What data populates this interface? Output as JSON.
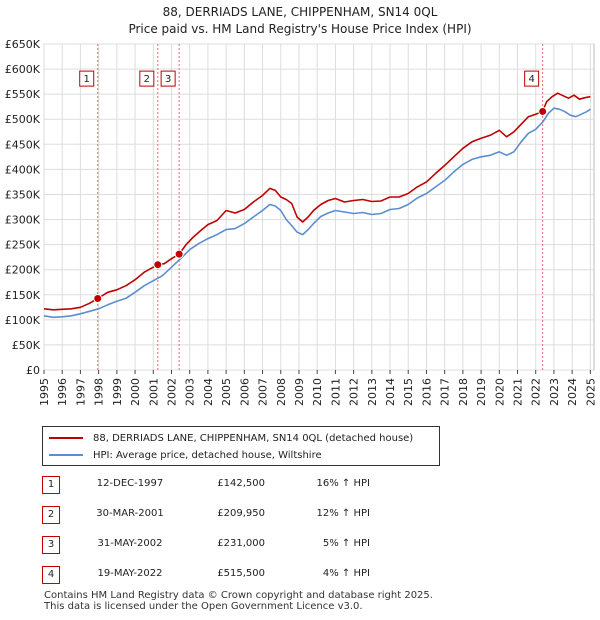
{
  "title_line1": "88, DERRIADS LANE, CHIPPENHAM, SN14 0QL",
  "title_line2": "Price paid vs. HM Land Registry's House Price Index (HPI)",
  "chart_data": {
    "type": "line",
    "title": "88, DERRIADS LANE, CHIPPENHAM, SN14 0QL — Price paid vs. HM Land Registry's House Price Index (HPI)",
    "xlabel": "",
    "ylabel": "",
    "xlim": [
      1995,
      2025.2
    ],
    "ylim": [
      0,
      650000
    ],
    "grid": true,
    "y_ticks": [
      0,
      50000,
      100000,
      150000,
      200000,
      250000,
      300000,
      350000,
      400000,
      450000,
      500000,
      550000,
      600000,
      650000
    ],
    "y_tick_labels": [
      "£0",
      "£50K",
      "£100K",
      "£150K",
      "£200K",
      "£250K",
      "£300K",
      "£350K",
      "£400K",
      "£450K",
      "£500K",
      "£550K",
      "£600K",
      "£650K"
    ],
    "x_ticks": [
      1995,
      1996,
      1997,
      1998,
      1999,
      2000,
      2001,
      2002,
      2003,
      2004,
      2005,
      2006,
      2007,
      2008,
      2009,
      2010,
      2011,
      2012,
      2013,
      2014,
      2015,
      2016,
      2017,
      2018,
      2019,
      2020,
      2021,
      2022,
      2023,
      2024,
      2025
    ],
    "x_tick_labels": [
      "1995",
      "1996",
      "1997",
      "1998",
      "1999",
      "2000",
      "2001",
      "2002",
      "2003",
      "2004",
      "2005",
      "2006",
      "2007",
      "2008",
      "2009",
      "2010",
      "2011",
      "2012",
      "2013",
      "2014",
      "2015",
      "2016",
      "2017",
      "2018",
      "2019",
      "2020",
      "2021",
      "2022",
      "2023",
      "2024",
      "2025"
    ],
    "series": [
      {
        "name": "88, DERRIADS LANE, CHIPPENHAM, SN14 0QL (detached house)",
        "color": "#c00000",
        "x": [
          1995.0,
          1995.5,
          1996.0,
          1996.5,
          1997.0,
          1997.5,
          1997.95,
          1998.5,
          1999.0,
          1999.5,
          2000.0,
          2000.5,
          2001.0,
          2001.25,
          2001.6,
          2002.0,
          2002.42,
          2002.8,
          2003.2,
          2003.6,
          2004.0,
          2004.5,
          2005.0,
          2005.5,
          2006.0,
          2006.5,
          2007.0,
          2007.4,
          2007.7,
          2008.0,
          2008.3,
          2008.6,
          2008.9,
          2009.2,
          2009.5,
          2009.8,
          2010.2,
          2010.6,
          2011.0,
          2011.5,
          2012.0,
          2012.5,
          2013.0,
          2013.5,
          2014.0,
          2014.5,
          2015.0,
          2015.5,
          2016.0,
          2016.5,
          2017.0,
          2017.5,
          2018.0,
          2018.5,
          2019.0,
          2019.5,
          2020.0,
          2020.4,
          2020.8,
          2021.2,
          2021.6,
          2022.0,
          2022.38,
          2022.6,
          2022.9,
          2023.2,
          2023.5,
          2023.8,
          2024.1,
          2024.4,
          2024.7,
          2025.0
        ],
        "values": [
          122000,
          120000,
          121000,
          122000,
          125000,
          133000,
          142500,
          155000,
          160000,
          168000,
          180000,
          195000,
          205000,
          209950,
          212000,
          222000,
          231000,
          250000,
          265000,
          278000,
          290000,
          298000,
          318000,
          313000,
          320000,
          335000,
          348000,
          362000,
          358000,
          345000,
          340000,
          332000,
          305000,
          295000,
          305000,
          318000,
          330000,
          338000,
          342000,
          335000,
          338000,
          340000,
          336000,
          337000,
          345000,
          345000,
          352000,
          365000,
          375000,
          392000,
          408000,
          425000,
          442000,
          455000,
          462000,
          468000,
          478000,
          465000,
          475000,
          490000,
          505000,
          510000,
          515500,
          535000,
          545000,
          552000,
          547000,
          542000,
          548000,
          540000,
          543000,
          545000
        ]
      },
      {
        "name": "HPI: Average price, detached house, Wiltshire",
        "color": "#5b8ecf",
        "x": [
          1995.0,
          1995.5,
          1996.0,
          1996.5,
          1997.0,
          1997.5,
          1998.0,
          1998.5,
          1999.0,
          1999.5,
          2000.0,
          2000.5,
          2001.0,
          2001.5,
          2002.0,
          2002.5,
          2003.0,
          2003.5,
          2004.0,
          2004.5,
          2005.0,
          2005.5,
          2006.0,
          2006.5,
          2007.0,
          2007.4,
          2007.7,
          2008.0,
          2008.3,
          2008.6,
          2008.9,
          2009.2,
          2009.5,
          2009.8,
          2010.2,
          2010.6,
          2011.0,
          2011.5,
          2012.0,
          2012.5,
          2013.0,
          2013.5,
          2014.0,
          2014.5,
          2015.0,
          2015.5,
          2016.0,
          2016.5,
          2017.0,
          2017.5,
          2018.0,
          2018.5,
          2019.0,
          2019.5,
          2020.0,
          2020.4,
          2020.8,
          2021.2,
          2021.6,
          2022.0,
          2022.4,
          2022.7,
          2023.0,
          2023.3,
          2023.6,
          2023.9,
          2024.2,
          2024.5,
          2024.8,
          2025.0
        ],
        "values": [
          108000,
          105000,
          106000,
          108000,
          112000,
          117000,
          122000,
          130000,
          137000,
          143000,
          155000,
          168000,
          178000,
          188000,
          205000,
          222000,
          240000,
          252000,
          262000,
          270000,
          280000,
          282000,
          292000,
          305000,
          318000,
          330000,
          327000,
          318000,
          300000,
          288000,
          275000,
          270000,
          280000,
          292000,
          306000,
          313000,
          318000,
          315000,
          312000,
          314000,
          310000,
          312000,
          320000,
          322000,
          330000,
          343000,
          352000,
          365000,
          378000,
          395000,
          410000,
          420000,
          425000,
          428000,
          435000,
          428000,
          435000,
          455000,
          472000,
          480000,
          495000,
          512000,
          522000,
          520000,
          515000,
          508000,
          505000,
          510000,
          515000,
          520000
        ]
      }
    ],
    "sales": [
      {
        "label": "1",
        "x": 1997.95,
        "price": 142500
      },
      {
        "label": "2",
        "x": 2001.25,
        "price": 209950
      },
      {
        "label": "3",
        "x": 2002.42,
        "price": 231000
      },
      {
        "label": "4",
        "x": 2022.38,
        "price": 515500
      }
    ]
  },
  "legend": [
    {
      "label": "88, DERRIADS LANE, CHIPPENHAM, SN14 0QL (detached house)",
      "color": "#c00000"
    },
    {
      "label": "HPI: Average price, detached house, Wiltshire",
      "color": "#5b8ecf"
    }
  ],
  "sales_table": [
    {
      "num": "1",
      "date": "12-DEC-1997",
      "price": "£142,500",
      "hpi": "16% ↑ HPI"
    },
    {
      "num": "2",
      "date": "30-MAR-2001",
      "price": "£209,950",
      "hpi": "12% ↑ HPI"
    },
    {
      "num": "3",
      "date": "31-MAY-2002",
      "price": "£231,000",
      "hpi": "5% ↑ HPI"
    },
    {
      "num": "4",
      "date": "19-MAY-2022",
      "price": "£515,500",
      "hpi": "4% ↑ HPI"
    }
  ],
  "footer_line1": "Contains HM Land Registry data © Crown copyright and database right 2025.",
  "footer_line2": "This data is licensed under the Open Government Licence v3.0."
}
